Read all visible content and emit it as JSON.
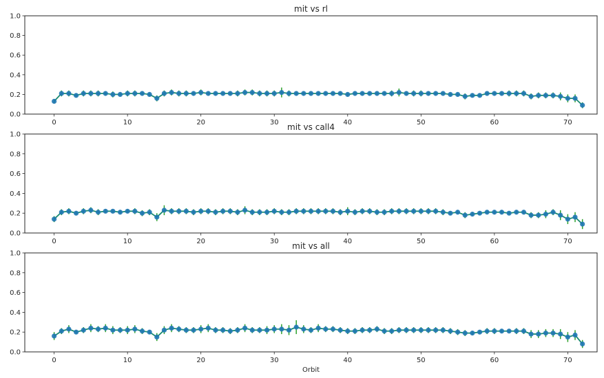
{
  "colors": {
    "marker": "#1f77b4",
    "errorbar": "#2ca02c",
    "line": "#1a8a70",
    "axis": "#262626",
    "background": "#ffffff"
  },
  "chart_data": [
    {
      "type": "line",
      "title": "mit vs rl",
      "xlabel": "",
      "ylabel": "",
      "xlim": [
        -4,
        74
      ],
      "ylim": [
        0,
        1.0
      ],
      "xticks": [
        "0",
        "10",
        "20",
        "30",
        "40",
        "50",
        "60",
        "70"
      ],
      "yticks": [
        "0.0",
        "0.2",
        "0.4",
        "0.6",
        "0.8",
        "1.0"
      ],
      "grid": false,
      "values": [
        0.13,
        0.21,
        0.21,
        0.19,
        0.21,
        0.21,
        0.21,
        0.21,
        0.2,
        0.2,
        0.21,
        0.21,
        0.21,
        0.2,
        0.16,
        0.21,
        0.22,
        0.21,
        0.21,
        0.21,
        0.22,
        0.21,
        0.21,
        0.21,
        0.21,
        0.21,
        0.22,
        0.22,
        0.21,
        0.21,
        0.21,
        0.22,
        0.21,
        0.21,
        0.21,
        0.21,
        0.21,
        0.21,
        0.21,
        0.21,
        0.2,
        0.21,
        0.21,
        0.21,
        0.21,
        0.21,
        0.21,
        0.22,
        0.21,
        0.21,
        0.21,
        0.21,
        0.21,
        0.21,
        0.2,
        0.2,
        0.18,
        0.19,
        0.19,
        0.21,
        0.21,
        0.21,
        0.21,
        0.21,
        0.21,
        0.18,
        0.19,
        0.19,
        0.19,
        0.18,
        0.16,
        0.16,
        0.09
      ],
      "errors": [
        0.02,
        0.03,
        0.03,
        0.02,
        0.03,
        0.03,
        0.03,
        0.02,
        0.03,
        0.02,
        0.03,
        0.03,
        0.02,
        0.02,
        0.03,
        0.03,
        0.03,
        0.03,
        0.03,
        0.02,
        0.03,
        0.02,
        0.02,
        0.02,
        0.02,
        0.03,
        0.03,
        0.03,
        0.03,
        0.03,
        0.03,
        0.05,
        0.03,
        0.02,
        0.02,
        0.02,
        0.02,
        0.02,
        0.02,
        0.02,
        0.02,
        0.02,
        0.02,
        0.02,
        0.02,
        0.02,
        0.03,
        0.04,
        0.02,
        0.03,
        0.03,
        0.02,
        0.02,
        0.02,
        0.02,
        0.02,
        0.03,
        0.02,
        0.02,
        0.02,
        0.02,
        0.02,
        0.03,
        0.03,
        0.03,
        0.03,
        0.03,
        0.03,
        0.03,
        0.04,
        0.04,
        0.04,
        0.03
      ]
    },
    {
      "type": "line",
      "title": "mit vs call4",
      "xlabel": "",
      "ylabel": "",
      "xlim": [
        -4,
        74
      ],
      "ylim": [
        0,
        1.0
      ],
      "xticks": [
        "0",
        "10",
        "20",
        "30",
        "40",
        "50",
        "60",
        "70"
      ],
      "yticks": [
        "0.0",
        "0.2",
        "0.4",
        "0.6",
        "0.8",
        "1.0"
      ],
      "grid": false,
      "values": [
        0.14,
        0.21,
        0.22,
        0.2,
        0.22,
        0.23,
        0.21,
        0.22,
        0.22,
        0.21,
        0.22,
        0.22,
        0.2,
        0.21,
        0.16,
        0.23,
        0.22,
        0.22,
        0.22,
        0.21,
        0.22,
        0.22,
        0.21,
        0.22,
        0.22,
        0.21,
        0.23,
        0.21,
        0.21,
        0.21,
        0.22,
        0.21,
        0.21,
        0.22,
        0.22,
        0.22,
        0.22,
        0.22,
        0.22,
        0.21,
        0.22,
        0.21,
        0.22,
        0.22,
        0.21,
        0.21,
        0.22,
        0.22,
        0.22,
        0.22,
        0.22,
        0.22,
        0.22,
        0.21,
        0.2,
        0.21,
        0.18,
        0.19,
        0.2,
        0.21,
        0.21,
        0.21,
        0.2,
        0.21,
        0.21,
        0.18,
        0.18,
        0.19,
        0.21,
        0.18,
        0.14,
        0.16,
        0.09
      ],
      "errors": [
        0.03,
        0.03,
        0.03,
        0.02,
        0.03,
        0.03,
        0.03,
        0.02,
        0.02,
        0.02,
        0.02,
        0.03,
        0.03,
        0.03,
        0.04,
        0.05,
        0.03,
        0.03,
        0.03,
        0.03,
        0.03,
        0.03,
        0.03,
        0.03,
        0.03,
        0.03,
        0.04,
        0.03,
        0.03,
        0.03,
        0.03,
        0.03,
        0.03,
        0.03,
        0.03,
        0.03,
        0.03,
        0.03,
        0.03,
        0.03,
        0.04,
        0.03,
        0.03,
        0.03,
        0.03,
        0.03,
        0.03,
        0.03,
        0.03,
        0.03,
        0.03,
        0.03,
        0.03,
        0.03,
        0.02,
        0.02,
        0.03,
        0.02,
        0.02,
        0.02,
        0.02,
        0.02,
        0.02,
        0.02,
        0.02,
        0.03,
        0.03,
        0.04,
        0.03,
        0.05,
        0.05,
        0.05,
        0.05
      ]
    },
    {
      "type": "line",
      "title": "mit vs all",
      "xlabel": "Orbit",
      "ylabel": "",
      "xlim": [
        -4,
        74
      ],
      "ylim": [
        0,
        1.0
      ],
      "xticks": [
        "0",
        "10",
        "20",
        "30",
        "40",
        "50",
        "60",
        "70"
      ],
      "yticks": [
        "0.0",
        "0.2",
        "0.4",
        "0.6",
        "0.8",
        "1.0"
      ],
      "grid": false,
      "values": [
        0.16,
        0.21,
        0.23,
        0.2,
        0.22,
        0.24,
        0.23,
        0.24,
        0.22,
        0.22,
        0.22,
        0.23,
        0.21,
        0.2,
        0.15,
        0.22,
        0.24,
        0.23,
        0.22,
        0.22,
        0.23,
        0.24,
        0.22,
        0.22,
        0.21,
        0.22,
        0.24,
        0.22,
        0.22,
        0.22,
        0.23,
        0.23,
        0.22,
        0.25,
        0.23,
        0.22,
        0.24,
        0.23,
        0.23,
        0.22,
        0.21,
        0.21,
        0.22,
        0.22,
        0.23,
        0.21,
        0.21,
        0.22,
        0.22,
        0.22,
        0.22,
        0.22,
        0.22,
        0.22,
        0.21,
        0.2,
        0.19,
        0.19,
        0.2,
        0.21,
        0.21,
        0.21,
        0.21,
        0.21,
        0.21,
        0.18,
        0.18,
        0.19,
        0.19,
        0.18,
        0.15,
        0.17,
        0.08
      ],
      "errors": [
        0.04,
        0.03,
        0.04,
        0.02,
        0.03,
        0.04,
        0.03,
        0.04,
        0.04,
        0.03,
        0.04,
        0.04,
        0.03,
        0.02,
        0.04,
        0.04,
        0.04,
        0.03,
        0.03,
        0.03,
        0.04,
        0.04,
        0.03,
        0.03,
        0.03,
        0.03,
        0.04,
        0.03,
        0.03,
        0.04,
        0.04,
        0.05,
        0.05,
        0.07,
        0.04,
        0.03,
        0.04,
        0.03,
        0.03,
        0.03,
        0.03,
        0.03,
        0.03,
        0.03,
        0.03,
        0.03,
        0.03,
        0.03,
        0.03,
        0.03,
        0.03,
        0.03,
        0.03,
        0.03,
        0.03,
        0.03,
        0.03,
        0.02,
        0.02,
        0.03,
        0.03,
        0.02,
        0.02,
        0.03,
        0.03,
        0.04,
        0.04,
        0.04,
        0.04,
        0.05,
        0.05,
        0.05,
        0.04
      ]
    }
  ]
}
